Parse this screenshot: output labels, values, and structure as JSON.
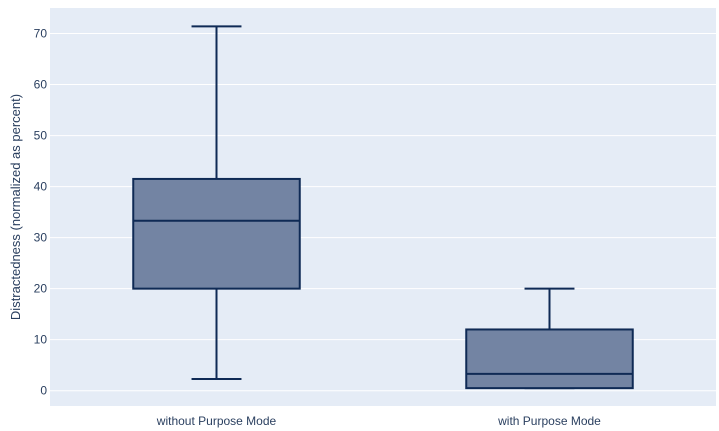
{
  "chart_data": {
    "type": "box",
    "ylabel": "Distractedness (normalized as percent)",
    "xlabel": "",
    "ylim": [
      -3,
      75
    ],
    "yticks": [
      0,
      10,
      20,
      30,
      40,
      50,
      60,
      70
    ],
    "grid": true,
    "colors": {
      "plot_bg": "#e5ecf6",
      "grid": "#ffffff",
      "box_fill": "#7384a3",
      "box_line": "#0f2a55",
      "text": "#2a3f5f"
    },
    "boxes": [
      {
        "category": "without Purpose Mode",
        "min": 2.3,
        "q1": 20,
        "median": 33.3,
        "q3": 41.5,
        "max": 71.4
      },
      {
        "category": "with Purpose Mode",
        "min": 0.5,
        "q1": 0.5,
        "median": 3.3,
        "q3": 12,
        "max": 20
      }
    ]
  }
}
